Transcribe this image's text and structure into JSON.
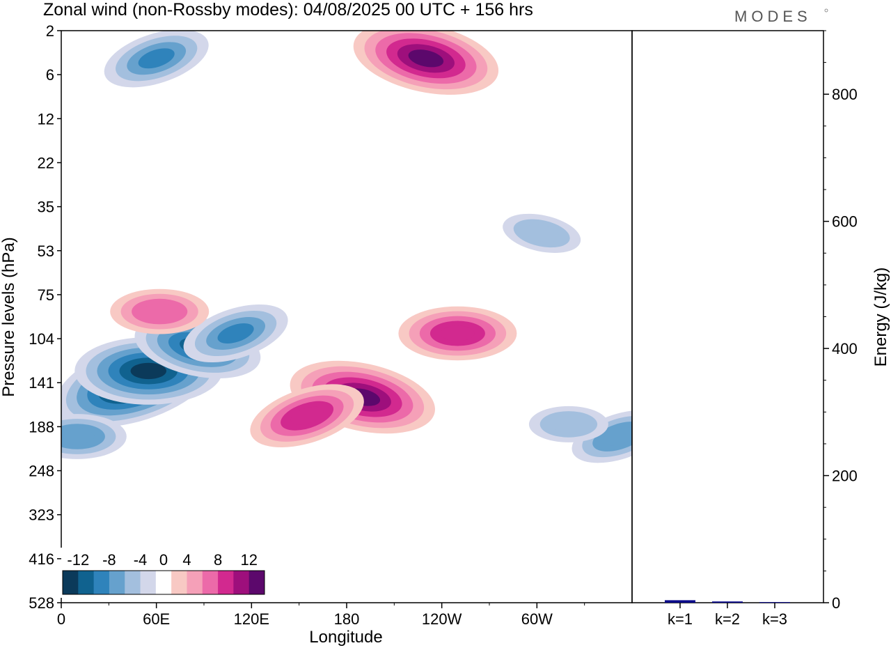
{
  "chart_data": [
    {
      "type": "heatmap",
      "title": "Zonal wind (non-Rossby modes):  04/08/2025  00 UTC  + 156 hrs",
      "xlabel": "Longitude",
      "ylabel": "Pressure levels (hPa)",
      "x_ticks": [
        "0",
        "60E",
        "120E",
        "180",
        "120W",
        "60W"
      ],
      "x_range_deg": [
        0,
        360
      ],
      "y_ticks": [
        "2",
        "6",
        "12",
        "22",
        "35",
        "53",
        "75",
        "104",
        "141",
        "188",
        "248",
        "323",
        "416",
        "528"
      ],
      "colorbar": {
        "tick_labels": [
          "-12",
          "-8",
          "-4",
          "0",
          "4",
          "8",
          "12"
        ],
        "levels": [
          -14,
          -12,
          -10,
          -8,
          -6,
          -4,
          -2,
          2,
          4,
          6,
          8,
          10,
          12,
          14
        ],
        "colors": [
          "#0b3a5a",
          "#10628f",
          "#2f83bb",
          "#66a1cd",
          "#a3bfde",
          "#d3d7ea",
          "#ffffff",
          "#f8c9c4",
          "#f5a0b8",
          "#ec6aa9",
          "#d2298f",
          "#9e0f7c",
          "#5c086c"
        ]
      },
      "features": [
        {
          "lon": 47,
          "level": 141,
          "value": -14
        },
        {
          "lon": 55,
          "level": 130,
          "value": -12
        },
        {
          "lon": 86,
          "level": 110,
          "value": -10
        },
        {
          "lon": 110,
          "level": 100,
          "value": -8
        },
        {
          "lon": 10,
          "level": 200,
          "value": -7
        },
        {
          "lon": 190,
          "level": 155,
          "value": 12
        },
        {
          "lon": 155,
          "level": 175,
          "value": 9
        },
        {
          "lon": 250,
          "level": 100,
          "value": 9
        },
        {
          "lon": 230,
          "level": 4,
          "value": 12
        },
        {
          "lon": 60,
          "level": 4,
          "value": -8
        },
        {
          "lon": 62,
          "level": 85,
          "value": 7
        },
        {
          "lon": 303,
          "level": 45,
          "value": -5
        },
        {
          "lon": 352,
          "level": 200,
          "value": -7
        },
        {
          "lon": 320,
          "level": 185,
          "value": -5
        }
      ]
    },
    {
      "type": "bar",
      "ylabel": "Energy (J/kg)",
      "categories": [
        "k=1",
        "k=2",
        "k=3"
      ],
      "values": [
        4,
        2,
        1
      ],
      "ylim": [
        0,
        900
      ],
      "yticks": [
        "0",
        "200",
        "400",
        "600",
        "800"
      ],
      "bar_color": "#0a0a8a"
    }
  ],
  "logo_text": "MODES"
}
